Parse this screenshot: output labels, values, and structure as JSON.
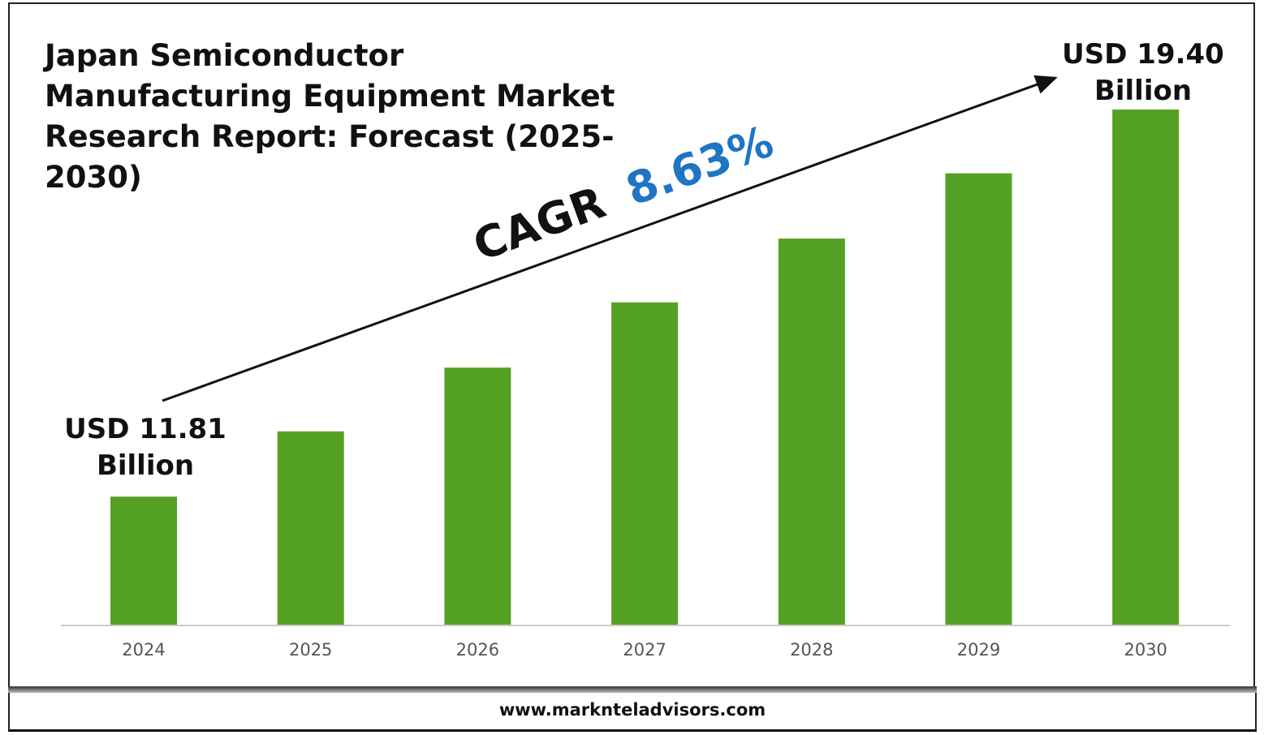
{
  "chart_data": {
    "type": "bar",
    "title": "Japan Semiconductor Manufacturing Equipment Market Research Report: Forecast (2025-2030)",
    "categories": [
      "2024",
      "2025",
      "2026",
      "2027",
      "2028",
      "2029",
      "2030"
    ],
    "values": [
      11.81,
      13.09,
      14.34,
      15.62,
      16.87,
      18.15,
      19.4
    ],
    "unit": "USD Billion",
    "ylim": [
      9.3,
      19.4
    ],
    "grid": false,
    "bar_color": "#55a124",
    "annotations": {
      "start_label": [
        "USD 11.81",
        "Billion"
      ],
      "end_label": [
        "USD 19.40",
        "Billion"
      ],
      "cagr_prefix": "CAGR",
      "cagr_value": "8.63%",
      "cagr_color": "#1f74c4"
    }
  },
  "footer": {
    "website": "www.marknteladvisors.com"
  }
}
